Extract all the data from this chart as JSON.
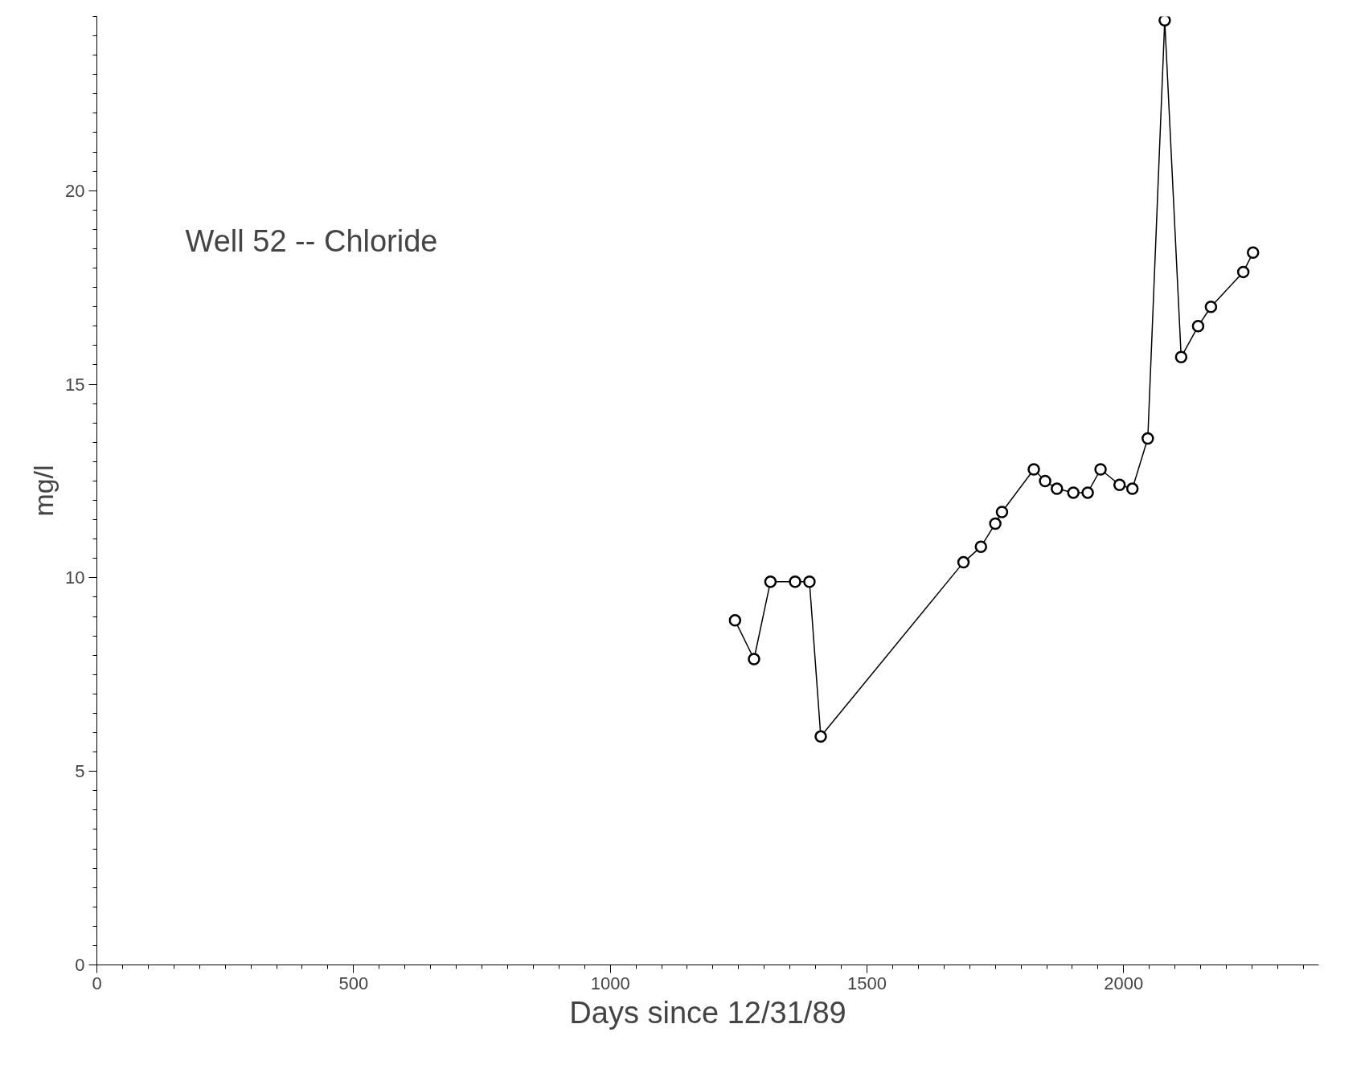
{
  "chart_data": {
    "type": "line",
    "xlabel": "Days since 12/31/89",
    "ylabel": "mg/l",
    "annotations": [
      "Well 52 -- Chloride"
    ],
    "x": [
      1243,
      1280,
      1312,
      1360,
      1388,
      1410,
      1688,
      1722,
      1750,
      1763,
      1825,
      1847,
      1870,
      1902,
      1930,
      1955,
      1992,
      2017,
      2047,
      2080,
      2112,
      2145,
      2170,
      2233,
      2252
    ],
    "series": [
      {
        "color": "#000000",
        "values": [
          8.9,
          7.9,
          9.9,
          9.9,
          9.9,
          5.9,
          10.4,
          10.8,
          11.4,
          11.7,
          12.8,
          12.5,
          12.3,
          12.2,
          12.2,
          12.8,
          12.4,
          12.3,
          13.6,
          24.4,
          15.7,
          16.5,
          17.0,
          17.9,
          18.4
        ]
      }
    ],
    "xlim": [
      0,
      2380
    ],
    "ylim": [
      0,
      24.5
    ],
    "xticks": [
      0,
      500,
      1000,
      1500,
      2000
    ],
    "yticks": [
      0,
      5,
      10,
      15,
      20
    ],
    "grid": false,
    "marker": "circle",
    "line_style": "solid"
  }
}
